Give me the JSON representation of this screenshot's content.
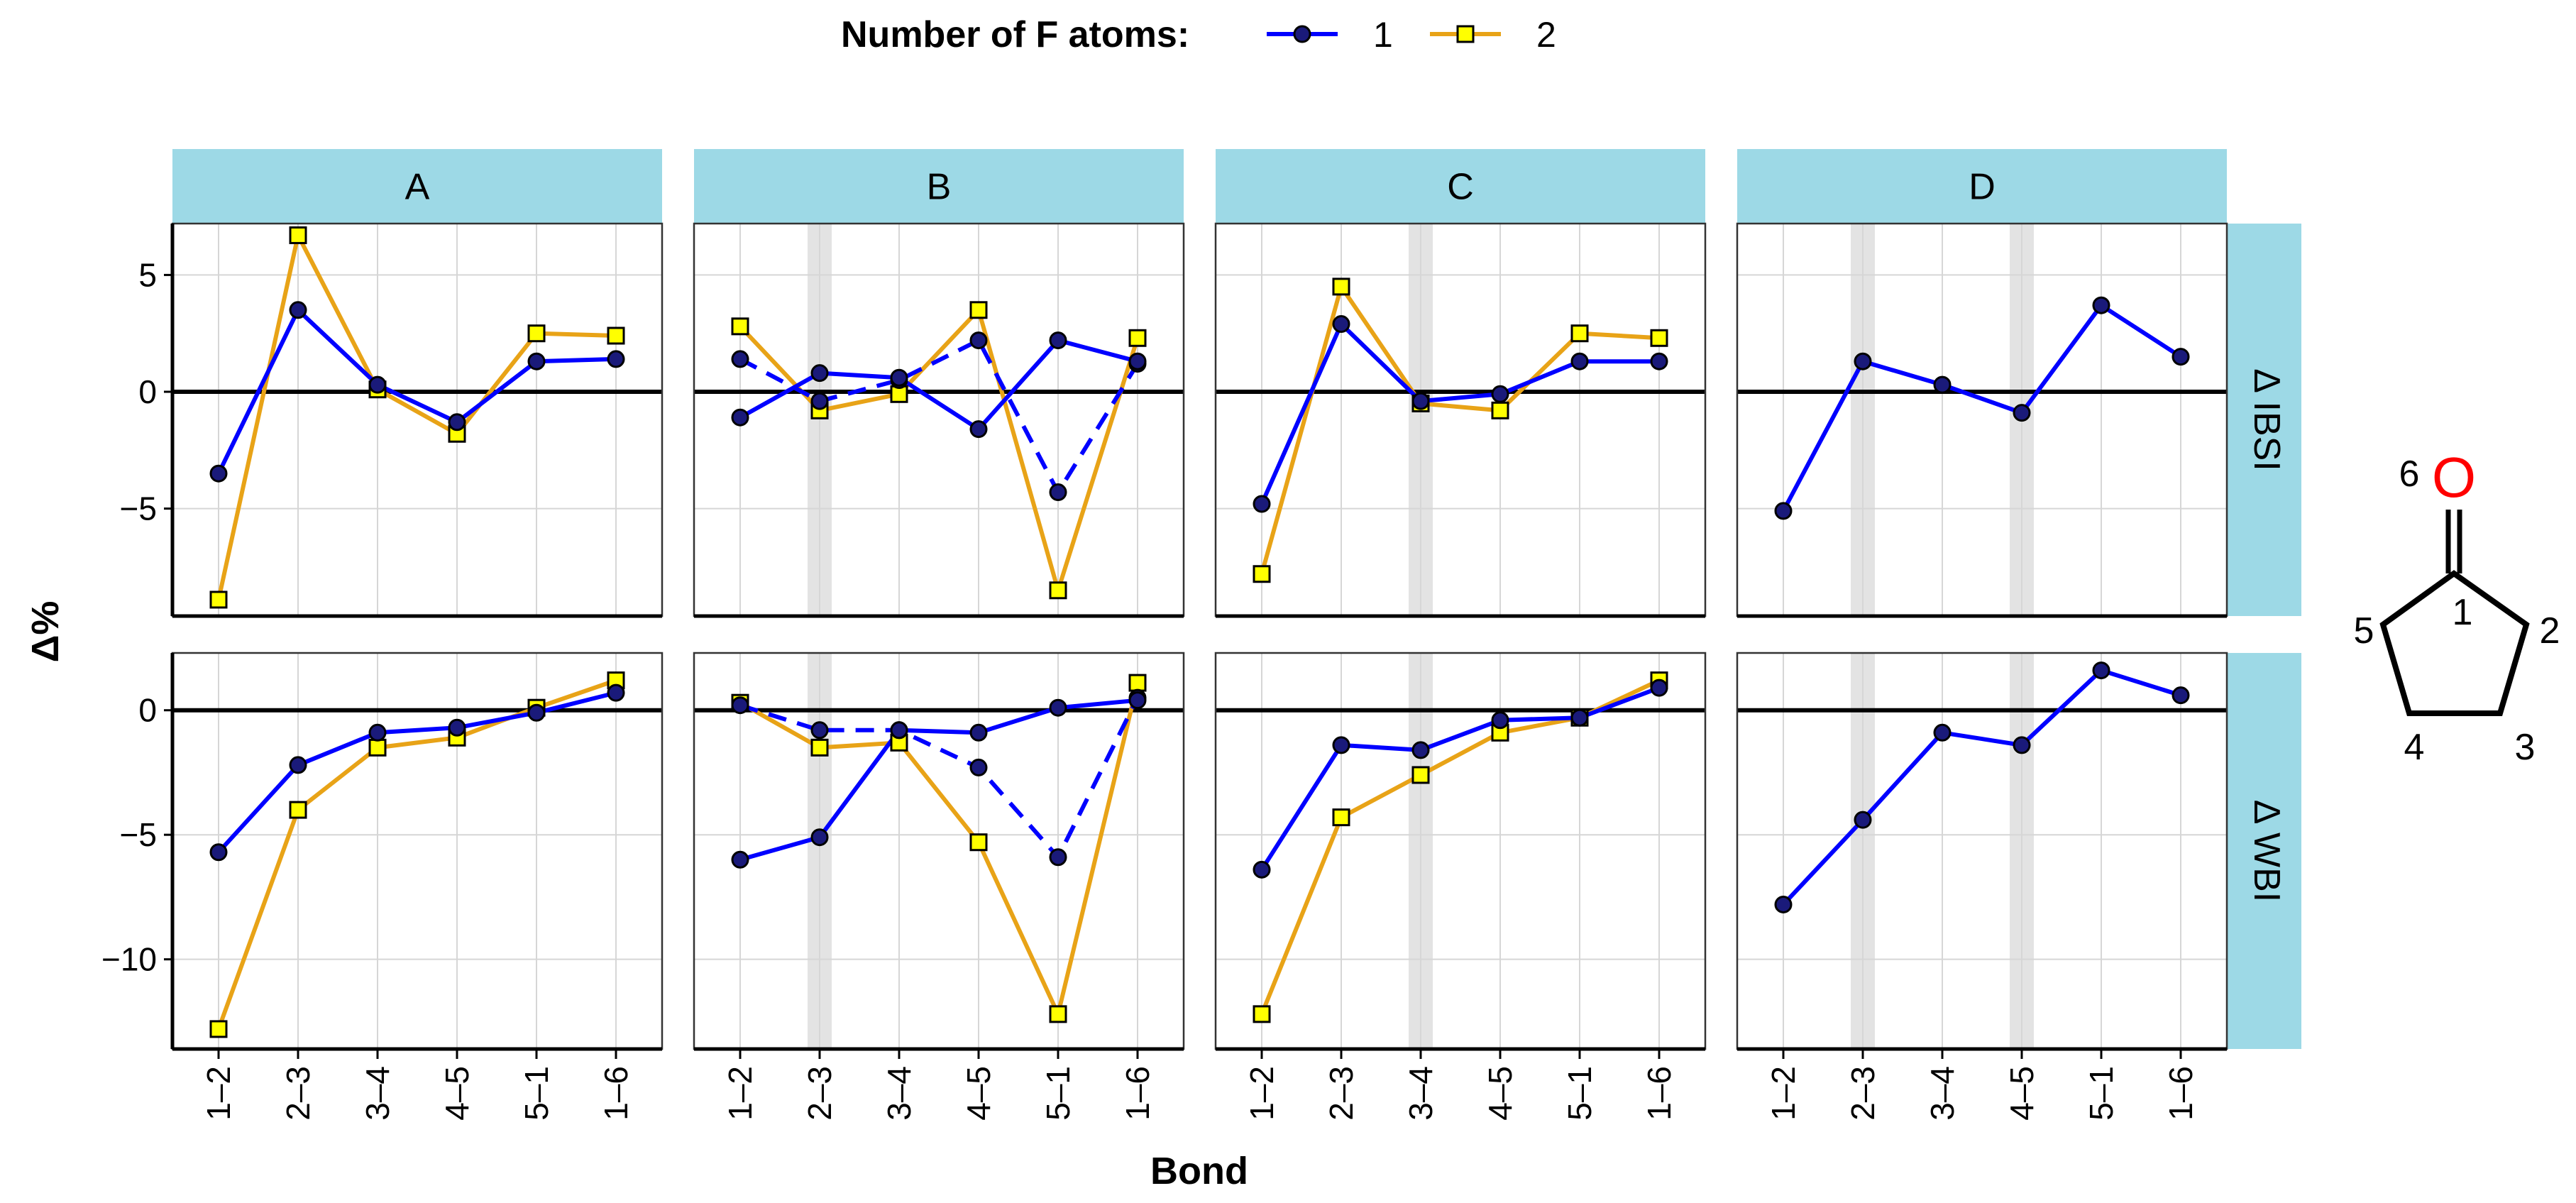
{
  "legend": {
    "title": "Number of F atoms:",
    "entries": [
      {
        "label": "1",
        "color": "#0000ff",
        "marker": "circle",
        "marker_fill": "#1a1a7a"
      },
      {
        "label": "2",
        "color": "#e8a317",
        "marker": "square",
        "marker_fill": "#ffff00"
      }
    ]
  },
  "axes": {
    "xlabel": "Bond",
    "ylabel": "Δ%"
  },
  "structure": {
    "oxygen_label": "O",
    "atom_labels": [
      "1",
      "2",
      "3",
      "4",
      "5",
      "6"
    ]
  },
  "chart_data": {
    "type": "line",
    "facet_columns": [
      "A",
      "B",
      "C",
      "D"
    ],
    "facet_rows": [
      "Δ IBSI",
      "Δ WBI"
    ],
    "categories": [
      "1–2",
      "2–3",
      "3–4",
      "4–5",
      "5–1",
      "1–6"
    ],
    "rows": [
      {
        "label": "Δ IBSI",
        "ylim": [
          -9.6,
          7.2
        ],
        "yticks": [
          -5,
          0,
          5
        ],
        "grid": true
      },
      {
        "label": "Δ WBI",
        "ylim": [
          -13.6,
          2.3
        ],
        "yticks": [
          -10,
          -5,
          0
        ],
        "grid": true
      }
    ],
    "panels": [
      {
        "column": "A",
        "row": "Δ IBSI",
        "highlight": [],
        "series": [
          {
            "name": "1",
            "dashed": false,
            "values": [
              -3.5,
              3.5,
              0.3,
              -1.3,
              1.3,
              1.4
            ]
          },
          {
            "name": "2",
            "dashed": false,
            "values": [
              -8.9,
              6.7,
              0.1,
              -1.8,
              2.5,
              2.4
            ]
          }
        ]
      },
      {
        "column": "A",
        "row": "Δ WBI",
        "highlight": [],
        "series": [
          {
            "name": "1",
            "dashed": false,
            "values": [
              -5.7,
              -2.2,
              -0.9,
              -0.7,
              -0.1,
              0.7
            ]
          },
          {
            "name": "2",
            "dashed": false,
            "values": [
              -12.8,
              -4.0,
              -1.5,
              -1.1,
              0.1,
              1.2
            ]
          }
        ]
      },
      {
        "column": "B",
        "row": "Δ IBSI",
        "highlight": [
          "2–3"
        ],
        "series": [
          {
            "name": "1",
            "dashed": false,
            "values": [
              -1.1,
              0.8,
              0.6,
              -1.6,
              2.2,
              1.3
            ]
          },
          {
            "name": "1",
            "dashed": true,
            "values": [
              1.4,
              -0.4,
              0.5,
              2.2,
              -4.3,
              1.2
            ]
          },
          {
            "name": "2",
            "dashed": false,
            "values": [
              2.8,
              -0.8,
              -0.1,
              3.5,
              -8.5,
              2.3
            ]
          }
        ]
      },
      {
        "column": "B",
        "row": "Δ WBI",
        "highlight": [
          "2–3"
        ],
        "series": [
          {
            "name": "1",
            "dashed": false,
            "values": [
              -6.0,
              -5.1,
              -0.8,
              -0.9,
              0.1,
              0.4
            ]
          },
          {
            "name": "1",
            "dashed": true,
            "values": [
              0.2,
              -0.8,
              -0.8,
              -2.3,
              -5.9,
              0.5
            ]
          },
          {
            "name": "2",
            "dashed": false,
            "values": [
              0.3,
              -1.5,
              -1.3,
              -5.3,
              -12.2,
              1.1
            ]
          }
        ]
      },
      {
        "column": "C",
        "row": "Δ IBSI",
        "highlight": [
          "3–4"
        ],
        "series": [
          {
            "name": "1",
            "dashed": false,
            "values": [
              -4.8,
              2.9,
              -0.4,
              -0.1,
              1.3,
              1.3
            ]
          },
          {
            "name": "2",
            "dashed": false,
            "values": [
              -7.8,
              4.5,
              -0.5,
              -0.8,
              2.5,
              2.3
            ]
          }
        ]
      },
      {
        "column": "C",
        "row": "Δ WBI",
        "highlight": [
          "3–4"
        ],
        "series": [
          {
            "name": "1",
            "dashed": false,
            "values": [
              -6.4,
              -1.4,
              -1.6,
              -0.4,
              -0.3,
              0.9
            ]
          },
          {
            "name": "2",
            "dashed": false,
            "values": [
              -12.2,
              -4.3,
              -2.6,
              -0.9,
              -0.3,
              1.2
            ]
          }
        ]
      },
      {
        "column": "D",
        "row": "Δ IBSI",
        "highlight": [
          "2–3",
          "4–5"
        ],
        "series": [
          {
            "name": "1",
            "dashed": false,
            "values": [
              -5.1,
              1.3,
              0.3,
              -0.9,
              3.7,
              1.5
            ]
          }
        ]
      },
      {
        "column": "D",
        "row": "Δ WBI",
        "highlight": [
          "2–3",
          "4–5"
        ],
        "series": [
          {
            "name": "1",
            "dashed": false,
            "values": [
              -7.8,
              -4.4,
              -0.9,
              -1.4,
              1.6,
              0.6
            ]
          }
        ]
      }
    ]
  }
}
